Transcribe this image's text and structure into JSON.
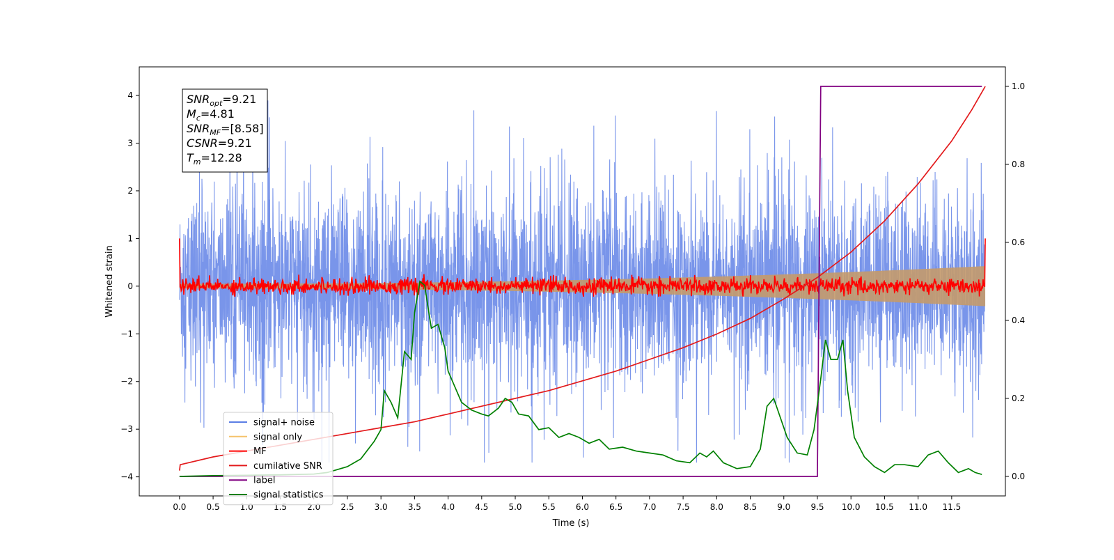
{
  "colors": {
    "noise": "#5b7ee5",
    "signal_only": "#f5c26b",
    "signal_band": "#c49a6c",
    "mf": "#ff0000",
    "cumulative_snr": "#e31a1c",
    "label": "#800080",
    "signal_statistics": "#008000",
    "axes": "#000000",
    "background": "#ffffff"
  },
  "annotation": {
    "lines": [
      {
        "base": "SNR",
        "sub": "opt",
        "rest": "=9.21"
      },
      {
        "base": "M",
        "sub": "c",
        "rest": "=4.81"
      },
      {
        "base": "SNR",
        "sub": "MF",
        "rest": "=[8.58]"
      },
      {
        "base": "CSNR",
        "sub": "",
        "rest": "=9.21"
      },
      {
        "base": "T",
        "sub": "m",
        "rest": "=12.28"
      }
    ]
  },
  "chart_data": {
    "type": "line",
    "title": "",
    "xlabel": "Time (s)",
    "ylabel": "Whitened strain",
    "y2label": "",
    "xlim": [
      -0.6,
      12.3
    ],
    "ylim": [
      -4.4,
      4.6
    ],
    "y2lim": [
      -0.05,
      1.05
    ],
    "x_ticks": [
      0.0,
      0.5,
      1.0,
      1.5,
      2.0,
      2.5,
      3.0,
      3.5,
      4.0,
      4.5,
      5.0,
      5.5,
      6.0,
      6.5,
      7.0,
      7.5,
      8.0,
      8.5,
      9.0,
      9.5,
      10.0,
      10.5,
      11.0,
      11.5
    ],
    "x_tick_labels": [
      "0.0",
      "0.5",
      "1.0",
      "1.5",
      "2.0",
      "2.5",
      "3.0",
      "3.5",
      "4.0",
      "4.5",
      "5.0",
      "5.5",
      "6.0",
      "6.5",
      "7.0",
      "7.5",
      "8.0",
      "8.5",
      "9.0",
      "9.5",
      "10.0",
      "10.5",
      "11.0",
      "11.5"
    ],
    "y_ticks": [
      4,
      3,
      2,
      1,
      0,
      -1,
      -2,
      -3,
      -4
    ],
    "y_tick_labels": [
      "4",
      "3",
      "2",
      "1",
      "0",
      "−1",
      "−2",
      "−3",
      "−4"
    ],
    "y2_ticks": [
      1.0,
      0.8,
      0.6,
      0.4,
      0.2,
      0.0
    ],
    "y2_tick_labels": [
      "1.0",
      "0.8",
      "0.6",
      "0.4",
      "0.2",
      "0.0"
    ],
    "legend_position": "lower-left",
    "grid": false,
    "series": [
      {
        "name": "signal+ noise",
        "axis": "left",
        "color_key": "noise",
        "kind": "noise",
        "x_range": [
          0.0,
          12.0
        ],
        "amplitude": 1.5,
        "peak_max": 4.15,
        "peak_min": -3.7
      },
      {
        "name": "signal only",
        "axis": "left",
        "color_key": "signal_only",
        "kind": "chirp",
        "x_range": [
          0.0,
          12.0
        ],
        "amplitude_start": 0.05,
        "amplitude_end": 0.42
      },
      {
        "name": "MF",
        "axis": "left",
        "color_key": "mf",
        "kind": "mf",
        "x_range": [
          0.0,
          12.0
        ],
        "amplitude": 0.12,
        "start_value": 1.0,
        "end_value": 1.0
      },
      {
        "name": "cumilative SNR",
        "axis": "right",
        "color_key": "cumulative_snr",
        "kind": "line",
        "points": [
          [
            0.0,
            0.015
          ],
          [
            0.01,
            0.03
          ],
          [
            0.5,
            0.05
          ],
          [
            1.0,
            0.065
          ],
          [
            1.5,
            0.08
          ],
          [
            2.0,
            0.095
          ],
          [
            2.5,
            0.11
          ],
          [
            3.0,
            0.125
          ],
          [
            3.5,
            0.14
          ],
          [
            4.0,
            0.16
          ],
          [
            4.5,
            0.18
          ],
          [
            5.0,
            0.2
          ],
          [
            5.5,
            0.22
          ],
          [
            6.0,
            0.245
          ],
          [
            6.5,
            0.27
          ],
          [
            7.0,
            0.3
          ],
          [
            7.5,
            0.33
          ],
          [
            8.0,
            0.365
          ],
          [
            8.5,
            0.405
          ],
          [
            9.0,
            0.455
          ],
          [
            9.5,
            0.51
          ],
          [
            10.0,
            0.575
          ],
          [
            10.5,
            0.655
          ],
          [
            11.0,
            0.75
          ],
          [
            11.5,
            0.86
          ],
          [
            11.8,
            0.94
          ],
          [
            12.0,
            1.0
          ]
        ]
      },
      {
        "name": "label",
        "axis": "right",
        "color_key": "label",
        "kind": "line",
        "points": [
          [
            0.0,
            0.0
          ],
          [
            9.5,
            0.0
          ],
          [
            9.55,
            1.0
          ],
          [
            11.95,
            1.0
          ]
        ]
      },
      {
        "name": "signal statistics",
        "axis": "right",
        "color_key": "signal_statistics",
        "kind": "line",
        "points": [
          [
            0.0,
            0.0
          ],
          [
            0.5,
            0.002
          ],
          [
            1.0,
            0.003
          ],
          [
            1.5,
            0.004
          ],
          [
            2.0,
            0.006
          ],
          [
            2.2,
            0.01
          ],
          [
            2.5,
            0.025
          ],
          [
            2.7,
            0.045
          ],
          [
            2.9,
            0.09
          ],
          [
            3.0,
            0.12
          ],
          [
            3.05,
            0.22
          ],
          [
            3.15,
            0.19
          ],
          [
            3.25,
            0.15
          ],
          [
            3.35,
            0.32
          ],
          [
            3.45,
            0.3
          ],
          [
            3.5,
            0.42
          ],
          [
            3.58,
            0.5
          ],
          [
            3.65,
            0.49
          ],
          [
            3.75,
            0.38
          ],
          [
            3.85,
            0.39
          ],
          [
            3.95,
            0.33
          ],
          [
            4.0,
            0.27
          ],
          [
            4.1,
            0.23
          ],
          [
            4.2,
            0.19
          ],
          [
            4.35,
            0.17
          ],
          [
            4.5,
            0.16
          ],
          [
            4.6,
            0.155
          ],
          [
            4.75,
            0.175
          ],
          [
            4.85,
            0.2
          ],
          [
            4.95,
            0.19
          ],
          [
            5.05,
            0.16
          ],
          [
            5.2,
            0.155
          ],
          [
            5.35,
            0.12
          ],
          [
            5.5,
            0.125
          ],
          [
            5.65,
            0.1
          ],
          [
            5.8,
            0.11
          ],
          [
            5.95,
            0.1
          ],
          [
            6.1,
            0.085
          ],
          [
            6.25,
            0.095
          ],
          [
            6.4,
            0.07
          ],
          [
            6.6,
            0.075
          ],
          [
            6.8,
            0.065
          ],
          [
            7.0,
            0.06
          ],
          [
            7.2,
            0.055
          ],
          [
            7.4,
            0.04
          ],
          [
            7.6,
            0.035
          ],
          [
            7.75,
            0.06
          ],
          [
            7.85,
            0.05
          ],
          [
            7.95,
            0.065
          ],
          [
            8.1,
            0.035
          ],
          [
            8.3,
            0.02
          ],
          [
            8.5,
            0.025
          ],
          [
            8.65,
            0.07
          ],
          [
            8.75,
            0.18
          ],
          [
            8.85,
            0.2
          ],
          [
            8.95,
            0.15
          ],
          [
            9.05,
            0.1
          ],
          [
            9.2,
            0.06
          ],
          [
            9.35,
            0.055
          ],
          [
            9.45,
            0.12
          ],
          [
            9.55,
            0.25
          ],
          [
            9.62,
            0.35
          ],
          [
            9.7,
            0.3
          ],
          [
            9.8,
            0.3
          ],
          [
            9.88,
            0.35
          ],
          [
            9.95,
            0.22
          ],
          [
            10.05,
            0.1
          ],
          [
            10.2,
            0.05
          ],
          [
            10.35,
            0.025
          ],
          [
            10.5,
            0.01
          ],
          [
            10.65,
            0.03
          ],
          [
            10.8,
            0.03
          ],
          [
            11.0,
            0.025
          ],
          [
            11.15,
            0.055
          ],
          [
            11.3,
            0.065
          ],
          [
            11.45,
            0.035
          ],
          [
            11.6,
            0.01
          ],
          [
            11.75,
            0.02
          ],
          [
            11.85,
            0.01
          ],
          [
            11.95,
            0.005
          ]
        ]
      }
    ]
  }
}
